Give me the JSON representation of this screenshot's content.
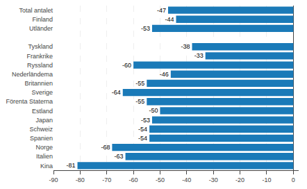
{
  "chart_data": {
    "type": "bar",
    "orientation": "horizontal",
    "categories": [
      "Kina",
      "Italien",
      "Norge",
      "Spanien",
      "Schweiz",
      "Japan",
      "Estland",
      "Förenta Staterna",
      "Sverige",
      "Britannien",
      "Nederländema",
      "Ryssland",
      "Frankrike",
      "Tyskland",
      null,
      "Utländer",
      "Finland",
      "Total antalet"
    ],
    "values": [
      -81,
      -63,
      -68,
      -54,
      -54,
      -53,
      -50,
      -55,
      -64,
      -55,
      -46,
      -60,
      -33,
      -38,
      null,
      -53,
      -44,
      -47
    ],
    "color": "#1a7ab8",
    "xlim": [
      -90,
      2
    ],
    "xticks": [
      -90,
      -80,
      -70,
      -60,
      -50,
      -40,
      -30,
      -20,
      -10,
      0
    ],
    "grid": true,
    "data_labels": true
  }
}
